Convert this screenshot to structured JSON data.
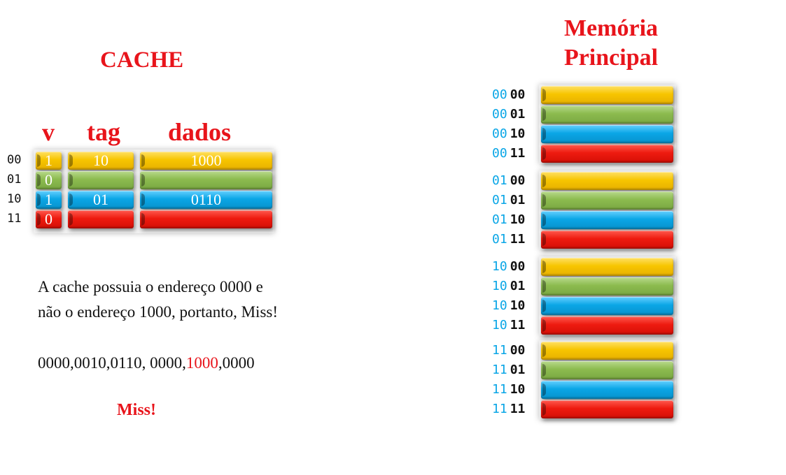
{
  "cache": {
    "title": "CACHE",
    "headers": {
      "v": "v",
      "tag": "tag",
      "dados": "dados"
    },
    "rows": [
      {
        "index": "00",
        "v": "1",
        "tag": "10",
        "dados": "1000",
        "color": "#f7c500"
      },
      {
        "index": "01",
        "v": "0",
        "tag": "",
        "dados": "",
        "color": "#8cbb4f"
      },
      {
        "index": "10",
        "v": "1",
        "tag": "01",
        "dados": "0110",
        "color": "#0aa6e6"
      },
      {
        "index": "11",
        "v": "0",
        "tag": "",
        "dados": "",
        "color": "#ee1b10"
      }
    ]
  },
  "memory": {
    "title_line1": "Memória",
    "title_line2": "Principal",
    "groups": [
      {
        "prefix": "00",
        "rows": [
          "00",
          "01",
          "10",
          "11"
        ]
      },
      {
        "prefix": "01",
        "rows": [
          "00",
          "01",
          "10",
          "11"
        ]
      },
      {
        "prefix": "10",
        "rows": [
          "00",
          "01",
          "10",
          "11"
        ]
      },
      {
        "prefix": "11",
        "rows": [
          "00",
          "01",
          "10",
          "11"
        ]
      }
    ],
    "colors": [
      "#f7c500",
      "#8cbb4f",
      "#0aa6e6",
      "#ee1b10"
    ]
  },
  "explanation": {
    "line1": "A cache possuia o endereço 0000 e",
    "line2": "não o endereço 1000, portanto, Miss!"
  },
  "sequence": {
    "before": "0000,0010,0110, 0000,",
    "highlight": "1000",
    "after": ",0000"
  },
  "result": "Miss!"
}
